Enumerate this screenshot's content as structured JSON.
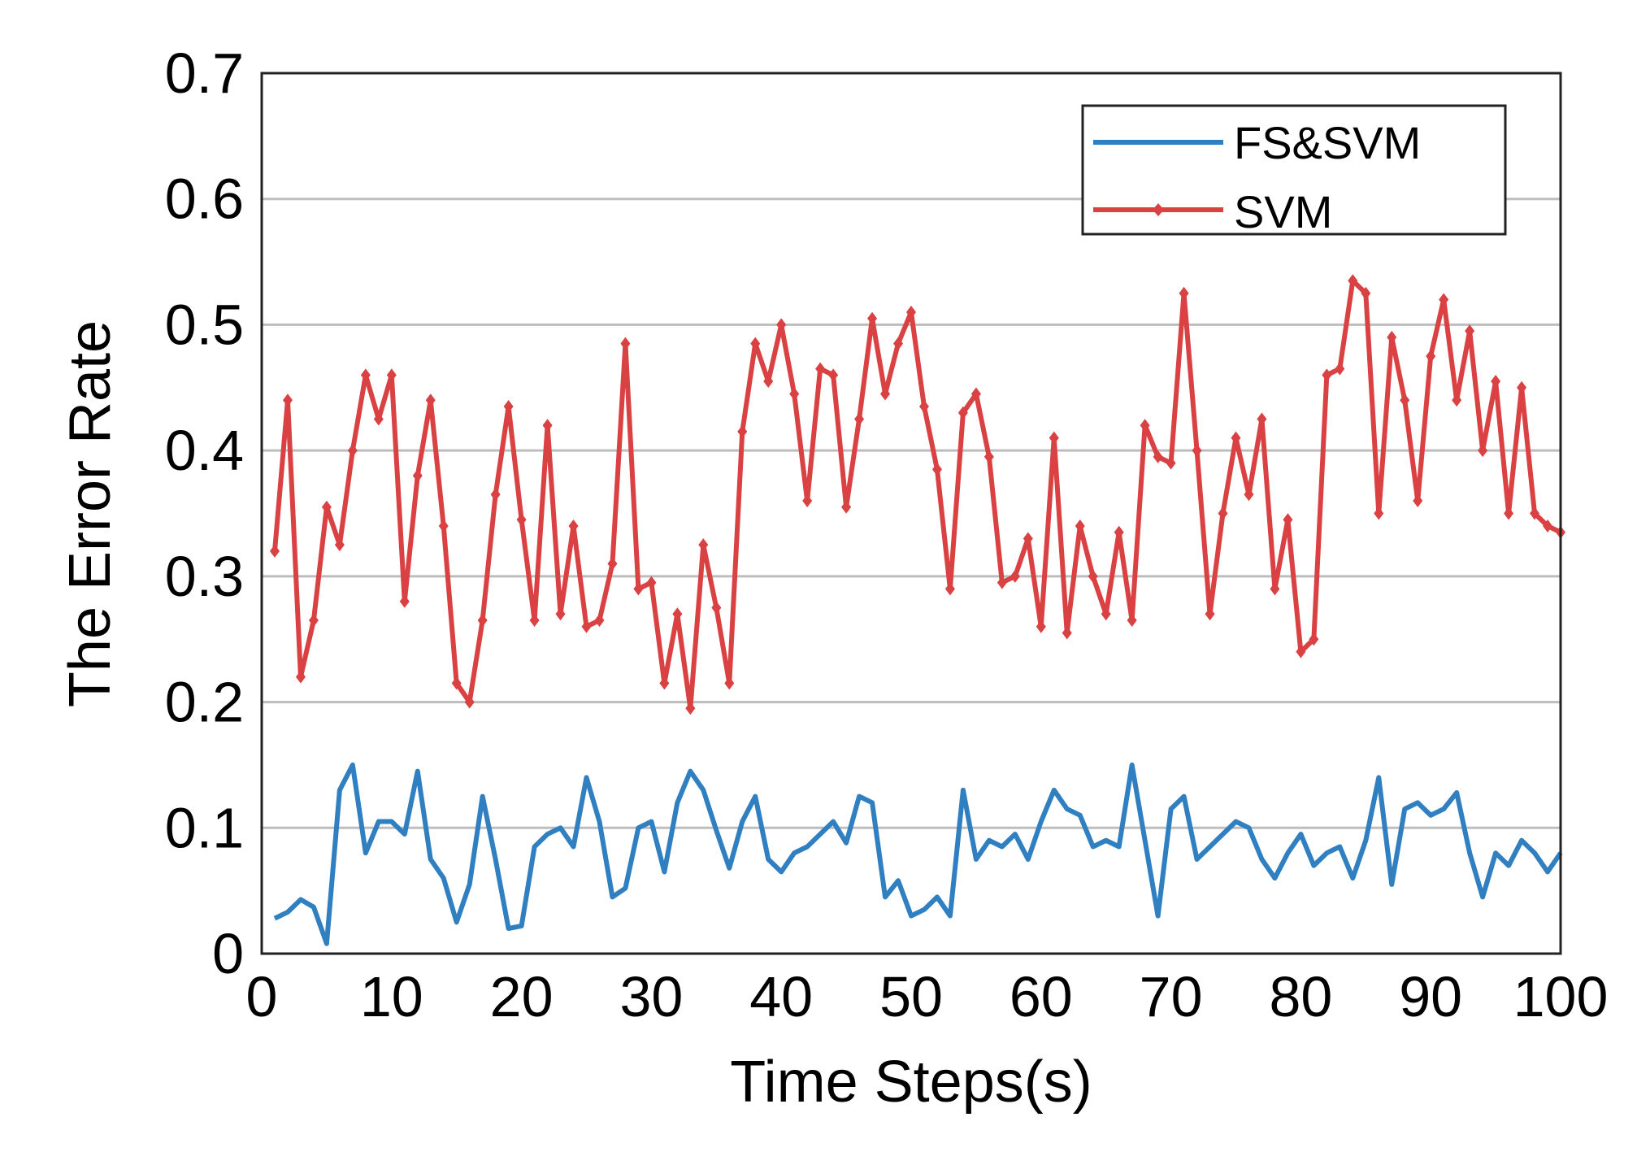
{
  "chart_data": {
    "type": "line",
    "title": "",
    "xlabel": "Time Steps(s)",
    "ylabel": "The Error Rate",
    "xlim": [
      0,
      100
    ],
    "ylim": [
      0,
      0.7
    ],
    "xticks": [
      0,
      10,
      20,
      30,
      40,
      50,
      60,
      70,
      80,
      90,
      100
    ],
    "xtick_labels": [
      "0",
      "10",
      "20",
      "30",
      "40",
      "50",
      "60",
      "70",
      "80",
      "90",
      "100"
    ],
    "yticks": [
      0,
      0.1,
      0.2,
      0.3,
      0.4,
      0.5,
      0.6,
      0.7
    ],
    "ytick_labels": [
      "0",
      "0.1",
      "0.2",
      "0.3",
      "0.4",
      "0.5",
      "0.6",
      "0.7"
    ],
    "grid": "horizontal",
    "legend_position": "top-right",
    "x": [
      1,
      2,
      3,
      4,
      5,
      6,
      7,
      8,
      9,
      10,
      11,
      12,
      13,
      14,
      15,
      16,
      17,
      18,
      19,
      20,
      21,
      22,
      23,
      24,
      25,
      26,
      27,
      28,
      29,
      30,
      31,
      32,
      33,
      34,
      35,
      36,
      37,
      38,
      39,
      40,
      41,
      42,
      43,
      44,
      45,
      46,
      47,
      48,
      49,
      50,
      51,
      52,
      53,
      54,
      55,
      56,
      57,
      58,
      59,
      60,
      61,
      62,
      63,
      64,
      65,
      66,
      67,
      68,
      69,
      70,
      71,
      72,
      73,
      74,
      75,
      76,
      77,
      78,
      79,
      80,
      81,
      82,
      83,
      84,
      85,
      86,
      87,
      88,
      89,
      90,
      91,
      92,
      93,
      94,
      95,
      96,
      97,
      98,
      99,
      100
    ],
    "series": [
      {
        "name": "FS&SVM",
        "color": "#2f7fc1",
        "marker": "none",
        "values": [
          0.028,
          0.033,
          0.043,
          0.037,
          0.008,
          0.13,
          0.15,
          0.08,
          0.105,
          0.105,
          0.095,
          0.145,
          0.075,
          0.06,
          0.025,
          0.055,
          0.125,
          0.075,
          0.02,
          0.022,
          0.085,
          0.095,
          0.1,
          0.085,
          0.14,
          0.105,
          0.045,
          0.052,
          0.1,
          0.105,
          0.065,
          0.12,
          0.145,
          0.13,
          0.098,
          0.068,
          0.105,
          0.125,
          0.075,
          0.065,
          0.08,
          0.085,
          0.095,
          0.105,
          0.088,
          0.125,
          0.12,
          0.045,
          0.058,
          0.03,
          0.035,
          0.045,
          0.03,
          0.13,
          0.075,
          0.09,
          0.085,
          0.095,
          0.075,
          0.105,
          0.13,
          0.115,
          0.11,
          0.085,
          0.09,
          0.085,
          0.15,
          0.09,
          0.03,
          0.115,
          0.125,
          0.075,
          0.085,
          0.095,
          0.105,
          0.1,
          0.075,
          0.06,
          0.08,
          0.095,
          0.07,
          0.08,
          0.085,
          0.06,
          0.09,
          0.14,
          0.055,
          0.115,
          0.12,
          0.11,
          0.115,
          0.128,
          0.08,
          0.045,
          0.08,
          0.07,
          0.09,
          0.08,
          0.065,
          0.08
        ]
      },
      {
        "name": "SVM",
        "color": "#d94142",
        "marker": "diamond",
        "values": [
          0.32,
          0.44,
          0.22,
          0.265,
          0.355,
          0.325,
          0.4,
          0.46,
          0.425,
          0.46,
          0.28,
          0.38,
          0.44,
          0.34,
          0.215,
          0.2,
          0.265,
          0.365,
          0.435,
          0.345,
          0.265,
          0.42,
          0.27,
          0.34,
          0.26,
          0.265,
          0.31,
          0.485,
          0.29,
          0.295,
          0.215,
          0.27,
          0.195,
          0.325,
          0.275,
          0.215,
          0.415,
          0.485,
          0.455,
          0.5,
          0.445,
          0.36,
          0.465,
          0.46,
          0.355,
          0.425,
          0.505,
          0.445,
          0.485,
          0.51,
          0.435,
          0.385,
          0.29,
          0.43,
          0.445,
          0.395,
          0.295,
          0.3,
          0.33,
          0.26,
          0.41,
          0.255,
          0.34,
          0.3,
          0.27,
          0.335,
          0.265,
          0.42,
          0.395,
          0.39,
          0.525,
          0.4,
          0.27,
          0.35,
          0.41,
          0.365,
          0.425,
          0.29,
          0.345,
          0.24,
          0.25,
          0.46,
          0.465,
          0.535,
          0.525,
          0.35,
          0.49,
          0.44,
          0.36,
          0.475,
          0.52,
          0.44,
          0.495,
          0.4,
          0.455,
          0.35,
          0.45,
          0.35,
          0.34,
          0.335
        ]
      }
    ]
  }
}
